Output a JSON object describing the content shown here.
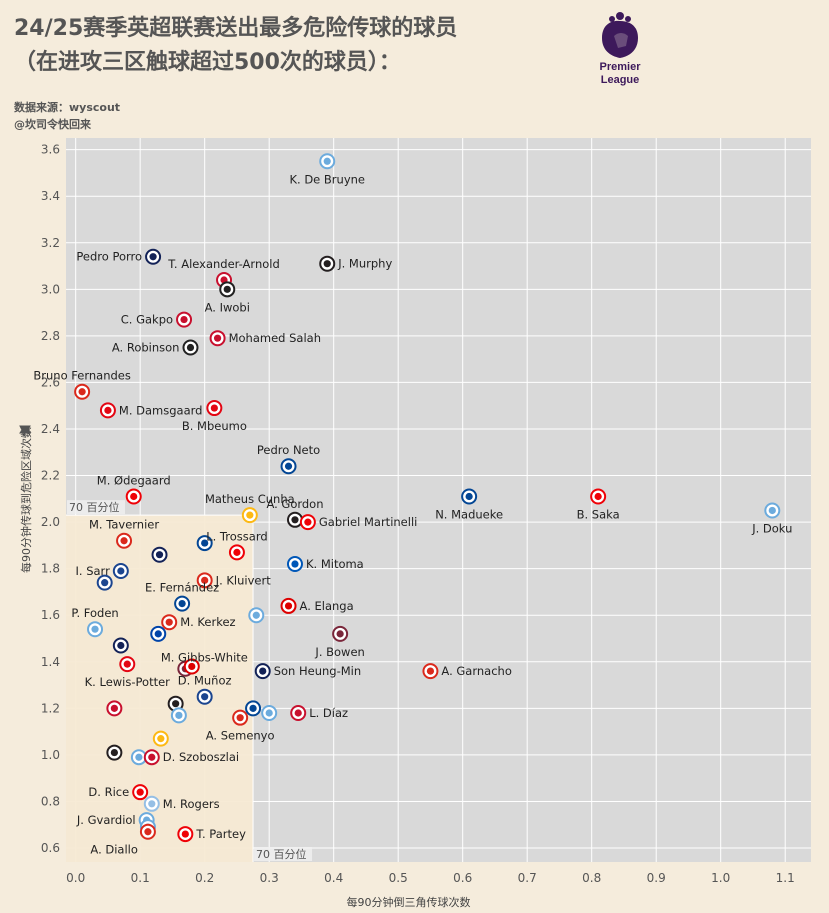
{
  "header": {
    "title_line1": "24/25赛季英超联赛送出最多危险传球的球员",
    "title_line2": "（在进攻三区触球超过500次的球员）：",
    "source_line1": "数据来源：wyscout",
    "source_line2": "@坎司令快回来",
    "logo_text1": "Premier",
    "logo_text2": "League"
  },
  "chart_data": {
    "type": "scatter",
    "title": "24/25赛季英超联赛送出最多危险传球的球员",
    "xlabel": "每90分钟倒三角传球次数",
    "ylabel": "每90分钟传球到危险区域次数",
    "xlim": [
      -0.015,
      1.14
    ],
    "ylim": [
      0.54,
      3.65
    ],
    "x_ticks": [
      0.0,
      0.1,
      0.2,
      0.3,
      0.4,
      0.5,
      0.6,
      0.7,
      0.8,
      0.9,
      1.0,
      1.1
    ],
    "y_ticks": [
      0.6,
      0.8,
      1.0,
      1.2,
      1.4,
      1.6,
      1.8,
      2.0,
      2.2,
      2.4,
      2.6,
      2.8,
      3.0,
      3.2,
      3.4,
      3.6
    ],
    "grid": true,
    "percentile_x": 0.275,
    "percentile_y": 2.03,
    "percentile_x_label": "70 百分位",
    "percentile_y_label": "70 百分位",
    "crest_colors": {
      "MCI": "#6cabdd",
      "LIV": "#c8102e",
      "FUL": "#222222",
      "NEW": "#241f20",
      "TOT": "#132257",
      "CHE": "#034694",
      "ARS": "#ef0107",
      "BRE": "#e30613",
      "MUN": "#da291c",
      "BHA": "#0057b8",
      "WOL": "#fdb913",
      "AVL": "#95bfe5",
      "BOU": "#da291c",
      "WHU": "#7a263a",
      "CRY": "#1b458f",
      "NFO": "#dd0000",
      "IPS": "#0044a9"
    },
    "points": [
      {
        "x": 0.39,
        "y": 3.55,
        "label": "K. De Bruyne",
        "team": "MCI",
        "lpos": "below"
      },
      {
        "x": 0.12,
        "y": 3.14,
        "label": "Pedro Porro",
        "team": "TOT",
        "lpos": "left"
      },
      {
        "x": 0.23,
        "y": 3.04,
        "label": "T. Alexander-Arnold",
        "team": "LIV",
        "lpos": "above"
      },
      {
        "x": 0.39,
        "y": 3.11,
        "label": "J. Murphy",
        "team": "NEW",
        "lpos": "right"
      },
      {
        "x": 0.235,
        "y": 3.0,
        "label": "A. Iwobi",
        "team": "FUL",
        "lpos": "below"
      },
      {
        "x": 0.168,
        "y": 2.87,
        "label": "C. Gakpo",
        "team": "LIV",
        "lpos": "left"
      },
      {
        "x": 0.22,
        "y": 2.79,
        "label": "Mohamed Salah",
        "team": "LIV",
        "lpos": "right"
      },
      {
        "x": 0.178,
        "y": 2.75,
        "label": "A. Robinson",
        "team": "FUL",
        "lpos": "left"
      },
      {
        "x": 0.01,
        "y": 2.56,
        "label": "Bruno Fernandes",
        "team": "MUN",
        "lpos": "above"
      },
      {
        "x": 0.05,
        "y": 2.48,
        "label": "M. Damsgaard",
        "team": "BRE",
        "lpos": "right"
      },
      {
        "x": 0.215,
        "y": 2.49,
        "label": "B. Mbeumo",
        "team": "BRE",
        "lpos": "below"
      },
      {
        "x": 0.33,
        "y": 2.24,
        "label": "Pedro Neto",
        "team": "CHE",
        "lpos": "above"
      },
      {
        "x": 0.09,
        "y": 2.11,
        "label": "M. Ødegaard",
        "team": "ARS",
        "lpos": "above"
      },
      {
        "x": 0.61,
        "y": 2.11,
        "label": "N. Madueke",
        "team": "CHE",
        "lpos": "below"
      },
      {
        "x": 0.81,
        "y": 2.11,
        "label": "B. Saka",
        "team": "ARS",
        "lpos": "below"
      },
      {
        "x": 1.08,
        "y": 2.05,
        "label": "J. Doku",
        "team": "MCI",
        "lpos": "below"
      },
      {
        "x": 0.27,
        "y": 2.03,
        "label": "Matheus Cunha",
        "team": "WOL",
        "lpos": "above"
      },
      {
        "x": 0.34,
        "y": 2.01,
        "label": "A. Gordon",
        "team": "NEW",
        "lpos": "above"
      },
      {
        "x": 0.36,
        "y": 2.0,
        "label": "Gabriel Martinelli",
        "team": "ARS",
        "lpos": "right"
      },
      {
        "x": 0.075,
        "y": 1.92,
        "label": "M. Tavernier",
        "team": "BOU",
        "lpos": "above"
      },
      {
        "x": 0.2,
        "y": 1.91,
        "label": "",
        "team": "CHE",
        "lpos": "none"
      },
      {
        "x": 0.25,
        "y": 1.87,
        "label": "L. Trossard",
        "team": "ARS",
        "lpos": "above"
      },
      {
        "x": 0.13,
        "y": 1.86,
        "label": "",
        "team": "TOT",
        "lpos": "none"
      },
      {
        "x": 0.34,
        "y": 1.82,
        "label": "K. Mitoma",
        "team": "BHA",
        "lpos": "right"
      },
      {
        "x": 0.07,
        "y": 1.79,
        "label": "I. Sarr",
        "team": "CRY",
        "lpos": "left"
      },
      {
        "x": 0.045,
        "y": 1.74,
        "label": "",
        "team": "CRY",
        "lpos": "none"
      },
      {
        "x": 0.2,
        "y": 1.75,
        "label": "J. Kluivert",
        "team": "BOU",
        "lpos": "right"
      },
      {
        "x": 0.165,
        "y": 1.65,
        "label": "E. Fernández",
        "team": "CHE",
        "lpos": "above"
      },
      {
        "x": 0.33,
        "y": 1.64,
        "label": "A. Elanga",
        "team": "NFO",
        "lpos": "right"
      },
      {
        "x": 0.28,
        "y": 1.6,
        "label": "",
        "team": "MCI",
        "lpos": "none"
      },
      {
        "x": 0.03,
        "y": 1.54,
        "label": "P. Foden",
        "team": "MCI",
        "lpos": "above"
      },
      {
        "x": 0.145,
        "y": 1.57,
        "label": "M. Kerkez",
        "team": "BOU",
        "lpos": "right"
      },
      {
        "x": 0.128,
        "y": 1.52,
        "label": "",
        "team": "IPS",
        "lpos": "none"
      },
      {
        "x": 0.41,
        "y": 1.52,
        "label": "J. Bowen",
        "team": "WHU",
        "lpos": "below"
      },
      {
        "x": 0.07,
        "y": 1.47,
        "label": "M. Gibbs-White",
        "team": "TOT",
        "lpos": "right2"
      },
      {
        "x": 0.08,
        "y": 1.39,
        "label": "K. Lewis-Potter",
        "team": "BRE",
        "lpos": "below"
      },
      {
        "x": 0.17,
        "y": 1.37,
        "label": "",
        "team": "WHU",
        "lpos": "none"
      },
      {
        "x": 0.18,
        "y": 1.38,
        "label": "",
        "team": "NFO",
        "lpos": "none"
      },
      {
        "x": 0.29,
        "y": 1.36,
        "label": "Son Heung-Min",
        "team": "TOT",
        "lpos": "right"
      },
      {
        "x": 0.55,
        "y": 1.36,
        "label": "A. Garnacho",
        "team": "MUN",
        "lpos": "right"
      },
      {
        "x": 0.2,
        "y": 1.25,
        "label": "D. Muñoz",
        "team": "CRY",
        "lpos": "above"
      },
      {
        "x": 0.155,
        "y": 1.22,
        "label": "",
        "team": "NEW",
        "lpos": "none"
      },
      {
        "x": 0.06,
        "y": 1.2,
        "label": "",
        "team": "LIV",
        "lpos": "none"
      },
      {
        "x": 0.275,
        "y": 1.2,
        "label": "",
        "team": "CHE",
        "lpos": "none"
      },
      {
        "x": 0.3,
        "y": 1.18,
        "label": "",
        "team": "MCI",
        "lpos": "none"
      },
      {
        "x": 0.345,
        "y": 1.18,
        "label": "L. Díaz",
        "team": "LIV",
        "lpos": "right"
      },
      {
        "x": 0.16,
        "y": 1.17,
        "label": "",
        "team": "MCI",
        "lpos": "none"
      },
      {
        "x": 0.255,
        "y": 1.16,
        "label": "A. Semenyo",
        "team": "BOU",
        "lpos": "below"
      },
      {
        "x": 0.132,
        "y": 1.07,
        "label": "",
        "team": "WOL",
        "lpos": "none"
      },
      {
        "x": 0.06,
        "y": 1.01,
        "label": "",
        "team": "NEW",
        "lpos": "none"
      },
      {
        "x": 0.098,
        "y": 0.99,
        "label": "",
        "team": "MCI",
        "lpos": "none"
      },
      {
        "x": 0.118,
        "y": 0.99,
        "label": "D. Szoboszlai",
        "team": "LIV",
        "lpos": "right"
      },
      {
        "x": 0.1,
        "y": 0.84,
        "label": "D. Rice",
        "team": "ARS",
        "lpos": "left"
      },
      {
        "x": 0.118,
        "y": 0.79,
        "label": "M. Rogers",
        "team": "AVL",
        "lpos": "right"
      },
      {
        "x": 0.11,
        "y": 0.72,
        "label": "J. Gvardiol",
        "team": "MCI",
        "lpos": "left"
      },
      {
        "x": 0.112,
        "y": 0.69,
        "label": "",
        "team": "MCI",
        "lpos": "none"
      },
      {
        "x": 0.17,
        "y": 0.66,
        "label": "T. Partey",
        "team": "ARS",
        "lpos": "right"
      },
      {
        "x": 0.112,
        "y": 0.67,
        "label": "A. Diallo",
        "team": "MUN",
        "lpos": "belowleft"
      }
    ]
  }
}
